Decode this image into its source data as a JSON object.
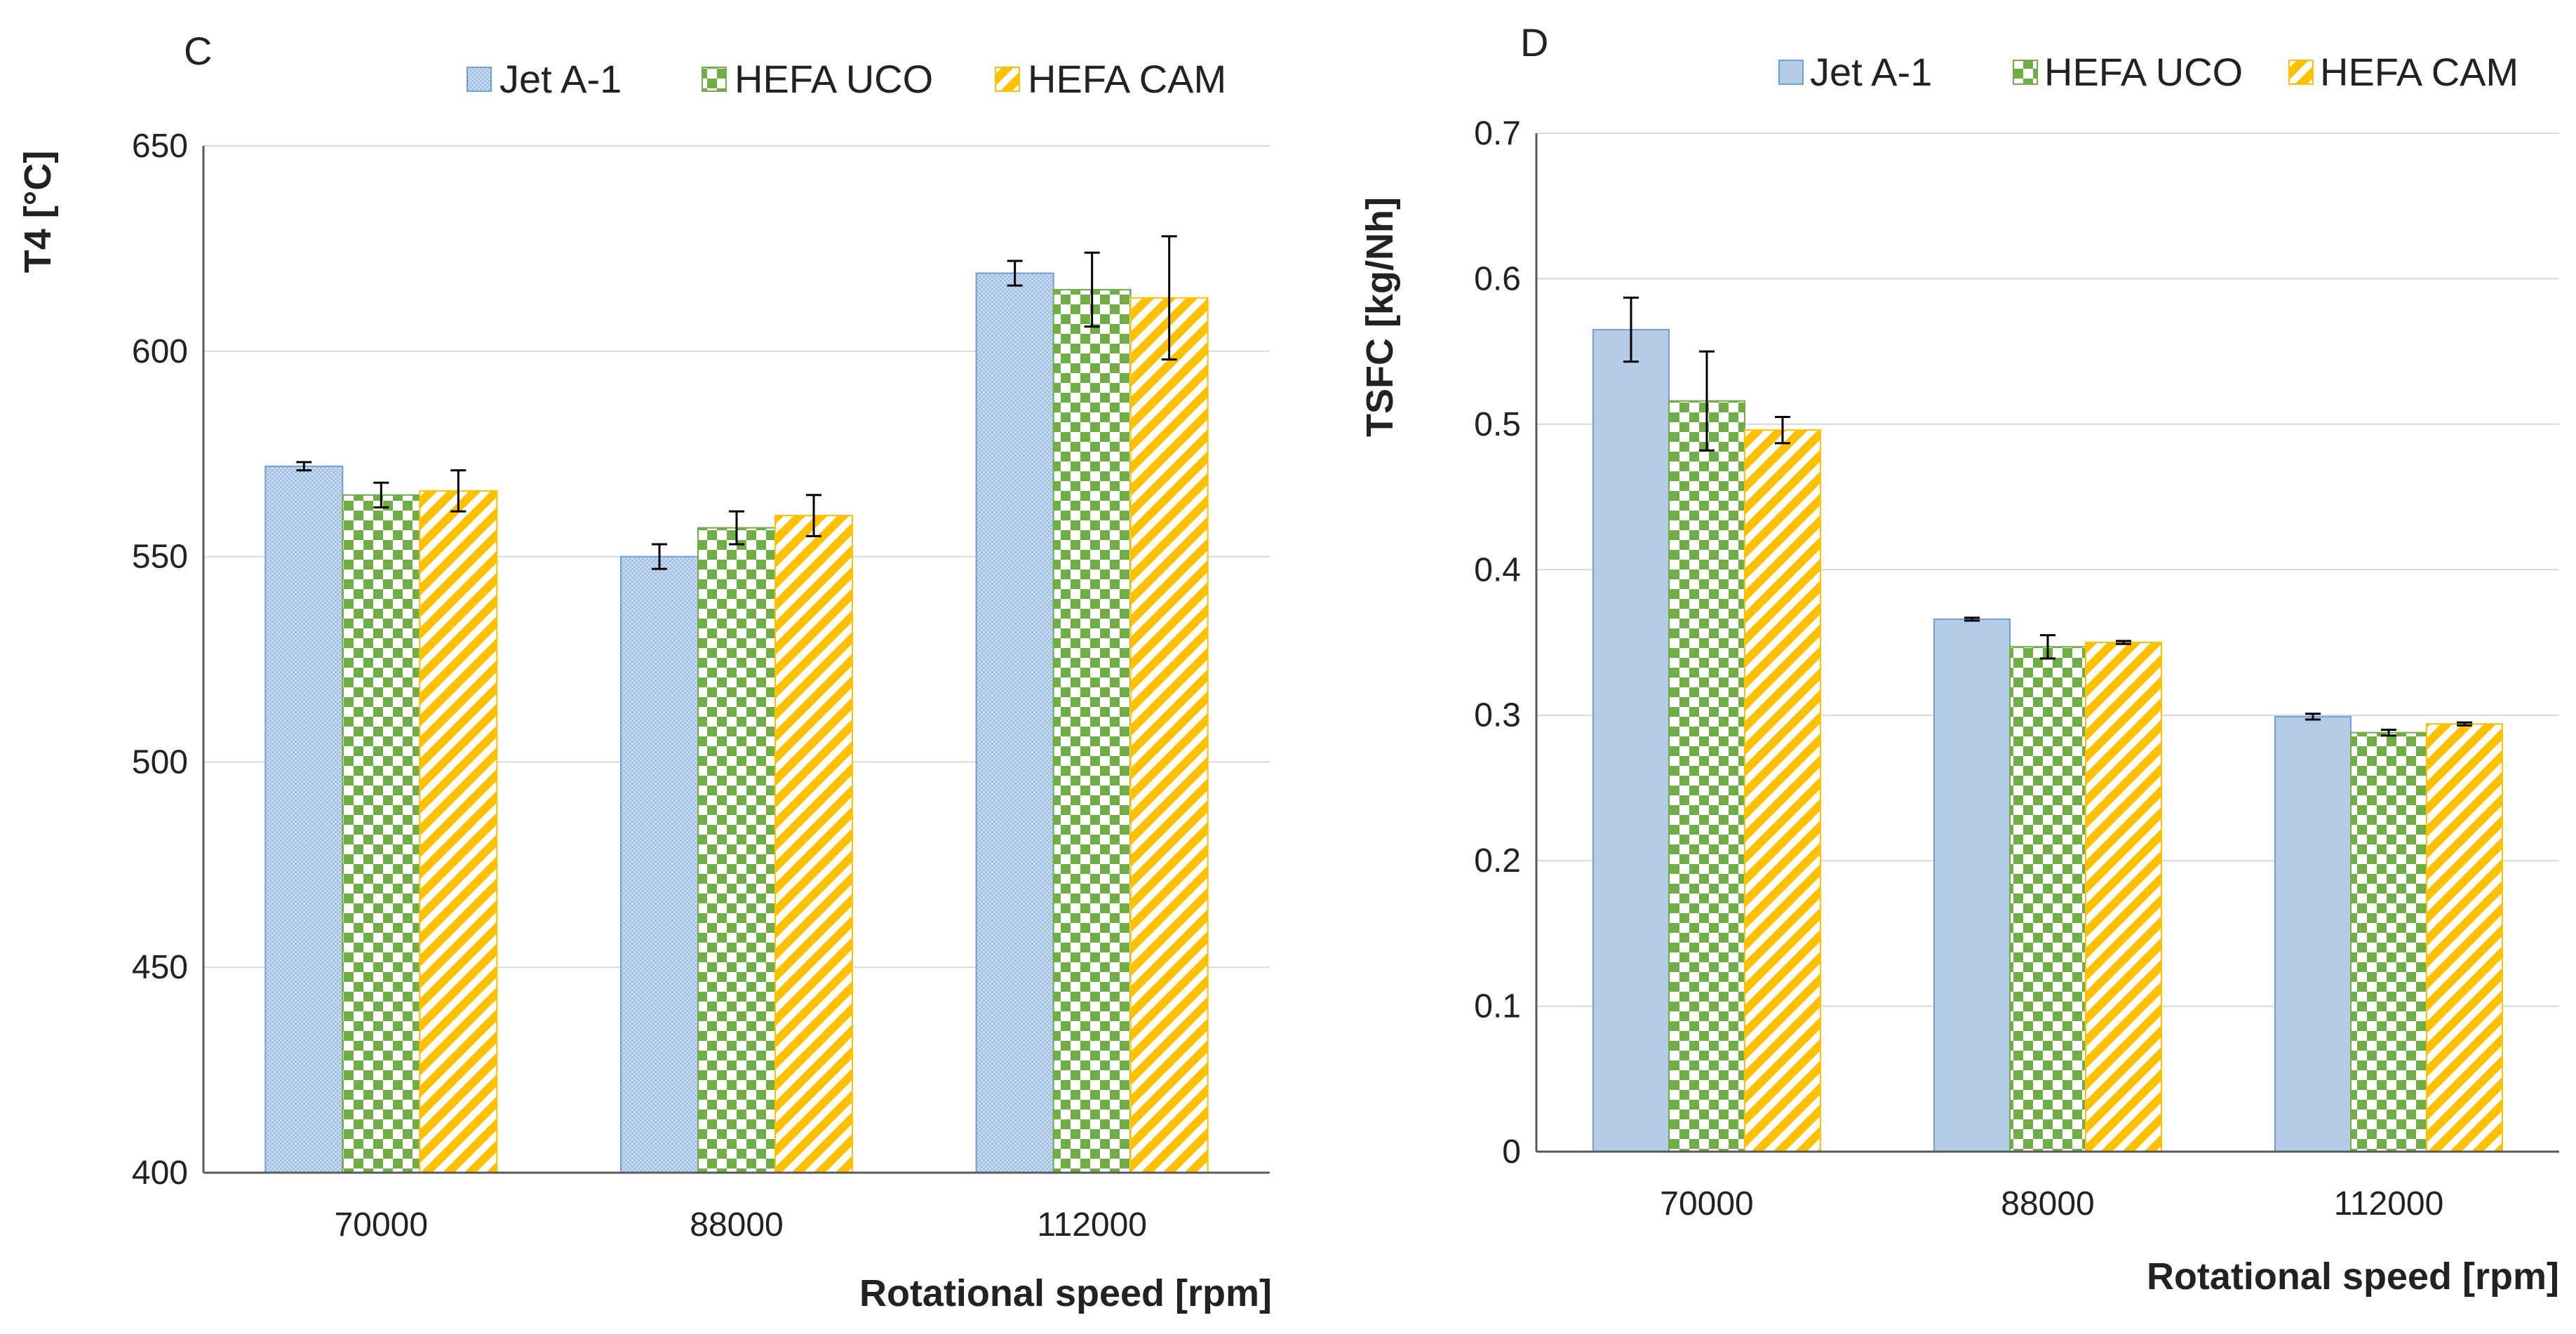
{
  "chart_data": [
    {
      "panel": "C",
      "type": "bar",
      "categories": [
        "70000",
        "88000",
        "112000"
      ],
      "series": [
        {
          "name": "Jet A-1",
          "values": [
            572,
            550,
            619
          ],
          "errors": [
            1,
            3,
            3
          ]
        },
        {
          "name": "HEFA UCO",
          "values": [
            565,
            557,
            615
          ],
          "errors": [
            3,
            4,
            9
          ]
        },
        {
          "name": "HEFA CAM",
          "values": [
            566,
            560,
            613
          ],
          "errors": [
            5,
            5,
            15
          ]
        }
      ],
      "xlabel": "Rotational speed [rpm]",
      "ylabel": "T4 [°C]",
      "ylim": [
        400,
        650
      ],
      "yticks": [
        "400",
        "450",
        "500",
        "550",
        "600",
        "650"
      ],
      "grid": true,
      "legend": "top"
    },
    {
      "panel": "D",
      "type": "bar",
      "categories": [
        "70000",
        "88000",
        "112000"
      ],
      "series": [
        {
          "name": "Jet A-1",
          "values": [
            0.565,
            0.366,
            0.299
          ],
          "errors": [
            0.022,
            0.001,
            0.002
          ]
        },
        {
          "name": "HEFA UCO",
          "values": [
            0.516,
            0.347,
            0.288
          ],
          "errors": [
            0.034,
            0.008,
            0.002
          ]
        },
        {
          "name": "HEFA CAM",
          "values": [
            0.496,
            0.35,
            0.294
          ],
          "errors": [
            0.009,
            0.001,
            0.001
          ]
        }
      ],
      "xlabel": "Rotational speed [rpm]",
      "ylabel": "TSFC [kg/Nh]",
      "ylim": [
        0,
        0.7
      ],
      "yticks": [
        "0",
        "0.1",
        "0.2",
        "0.3",
        "0.4",
        "0.5",
        "0.6",
        "0.7"
      ],
      "grid": true,
      "legend": "top"
    }
  ],
  "colors": {
    "jet_fill": "#b4cbe6",
    "jet_stroke": "#6f9fd6",
    "uco_fill": "#70ad47",
    "uco_alt": "#ffffff",
    "cam_fill": "#ffc000",
    "cam_alt": "#ffffff",
    "grid": "#d9d9d9",
    "axis": "#595959",
    "errorbar": "#000000"
  }
}
